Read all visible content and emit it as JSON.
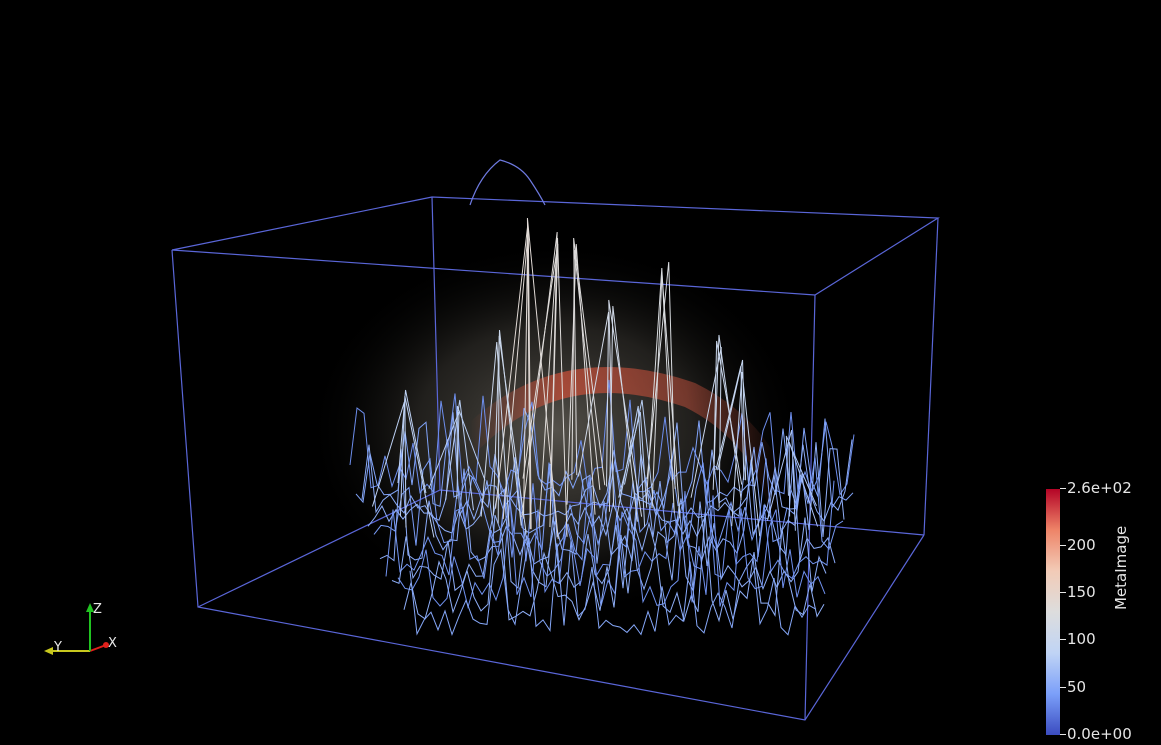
{
  "viewer": {
    "background": "#000000",
    "outline_color": "#5a66d8",
    "surface_colormap": [
      "#3b4cc0",
      "#7b9ff9",
      "#c0d4f5",
      "#dddddd",
      "#f2cbb7",
      "#ee8468",
      "#b40426"
    ]
  },
  "axes_widget": {
    "x_label": "X",
    "y_label": "Y",
    "z_label": "Z",
    "x_color": "#e0201b",
    "y_color": "#c8c81e",
    "z_color": "#21c421"
  },
  "colorbar": {
    "title": "MetaImage",
    "ticks": [
      {
        "value": 260,
        "label": "2.6e+02"
      },
      {
        "value": 200,
        "label": "200"
      },
      {
        "value": 150,
        "label": "150"
      },
      {
        "value": 100,
        "label": "100"
      },
      {
        "value": 50,
        "label": "50"
      },
      {
        "value": 0,
        "label": "0.0e+00"
      }
    ],
    "range": [
      0,
      260
    ]
  }
}
